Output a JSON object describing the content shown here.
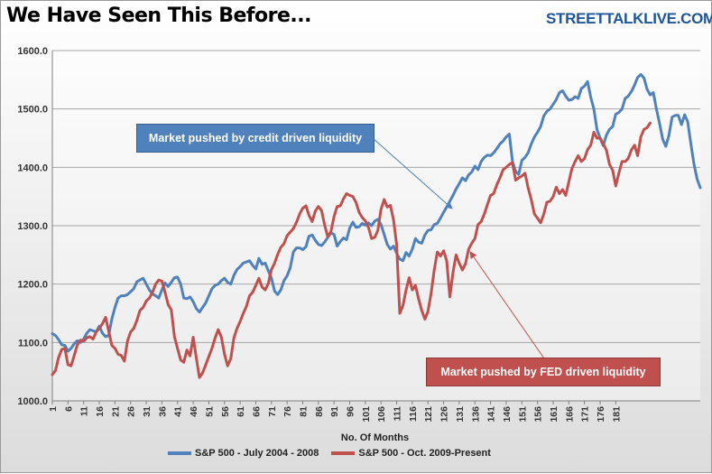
{
  "header": {
    "title": "We Have Seen This Before...",
    "brand": "STREETTALKLIVE.COM"
  },
  "annotations": {
    "credit": "Market pushed by credit driven liquidity",
    "fed": "Market pushed by FED driven liquidity"
  },
  "colors": {
    "blue": "#4f81bd",
    "red": "#c0504d",
    "blue_box": "#4f81bd",
    "red_box": "#c0504d"
  },
  "chart_data": {
    "type": "line",
    "title": "We Have Seen This Before...",
    "xlabel": "No. Of Months",
    "ylabel": "",
    "ylim": [
      1000,
      1600
    ],
    "yticks": [
      "1000.0",
      "1100.0",
      "1200.0",
      "1300.0",
      "1400.0",
      "1500.0",
      "1600.0"
    ],
    "xticks": [
      "1",
      "6",
      "11",
      "16",
      "21",
      "26",
      "31",
      "36",
      "41",
      "46",
      "51",
      "56",
      "61",
      "66",
      "71",
      "76",
      "81",
      "86",
      "91",
      "96",
      "101",
      "106",
      "111",
      "116",
      "121",
      "126",
      "131",
      "136",
      "141",
      "146",
      "151",
      "156",
      "161",
      "166",
      "171",
      "176",
      "181"
    ],
    "grid": true,
    "legend_position": "bottom",
    "series": [
      {
        "name": "S&P 500 - July 2004 - 2008",
        "color": "#4f81bd",
        "values": [
          1115,
          1112,
          1105,
          1096,
          1095,
          1085,
          1090,
          1098,
          1103,
          1100,
          1106,
          1116,
          1122,
          1120,
          1118,
          1128,
          1116,
          1110,
          1112,
          1140,
          1160,
          1176,
          1180,
          1180,
          1182,
          1187,
          1192,
          1204,
          1207,
          1210,
          1200,
          1190,
          1183,
          1180,
          1176,
          1190,
          1202,
          1196,
          1203,
          1211,
          1212,
          1200,
          1176,
          1175,
          1178,
          1170,
          1158,
          1152,
          1160,
          1168,
          1180,
          1192,
          1198,
          1200,
          1206,
          1210,
          1203,
          1200,
          1215,
          1225,
          1230,
          1236,
          1238,
          1240,
          1232,
          1226,
          1244,
          1234,
          1236,
          1223,
          1210,
          1188,
          1182,
          1190,
          1206,
          1214,
          1228,
          1255,
          1262,
          1262,
          1259,
          1264,
          1282,
          1284,
          1275,
          1268,
          1266,
          1272,
          1280,
          1288,
          1285,
          1265,
          1273,
          1279,
          1276,
          1296,
          1306,
          1297,
          1298,
          1304,
          1301,
          1305,
          1300,
          1308,
          1311,
          1302,
          1285,
          1268,
          1260,
          1265,
          1253,
          1243,
          1240,
          1254,
          1248,
          1260,
          1278,
          1272,
          1270,
          1284,
          1292,
          1293,
          1302,
          1304,
          1313,
          1323,
          1332,
          1342,
          1352,
          1363,
          1372,
          1382,
          1377,
          1387,
          1392,
          1402,
          1396,
          1410,
          1417,
          1421,
          1420,
          1425,
          1432,
          1440,
          1445,
          1452,
          1457,
          1410,
          1393,
          1388,
          1412,
          1417,
          1425,
          1440,
          1452,
          1460,
          1470,
          1488,
          1496,
          1500,
          1508,
          1516,
          1528,
          1531,
          1522,
          1515,
          1516,
          1521,
          1518,
          1535,
          1539,
          1547,
          1520,
          1500,
          1465,
          1450,
          1437,
          1455,
          1465,
          1470,
          1491,
          1494,
          1500,
          1518,
          1522,
          1530,
          1541,
          1554,
          1559,
          1553,
          1534,
          1524,
          1528,
          1500,
          1475,
          1448,
          1436,
          1455,
          1486,
          1489,
          1489,
          1473,
          1490,
          1478,
          1440,
          1405,
          1380,
          1365
        ]
      },
      {
        "name": "S&P 500 - Oct. 2009-Present",
        "color": "#c0504d",
        "values": [
          1045,
          1052,
          1074,
          1088,
          1090,
          1062,
          1060,
          1078,
          1096,
          1104,
          1102,
          1108,
          1110,
          1106,
          1118,
          1124,
          1132,
          1143,
          1120,
          1095,
          1090,
          1080,
          1078,
          1068,
          1102,
          1118,
          1124,
          1138,
          1155,
          1160,
          1171,
          1176,
          1186,
          1200,
          1207,
          1205,
          1186,
          1165,
          1156,
          1110,
          1090,
          1070,
          1066,
          1087,
          1077,
          1109,
          1073,
          1040,
          1048,
          1062,
          1076,
          1090,
          1108,
          1122,
          1109,
          1080,
          1060,
          1072,
          1108,
          1124,
          1136,
          1150,
          1162,
          1180,
          1186,
          1198,
          1210,
          1195,
          1190,
          1201,
          1225,
          1236,
          1251,
          1263,
          1269,
          1283,
          1289,
          1295,
          1306,
          1320,
          1330,
          1334,
          1318,
          1307,
          1325,
          1333,
          1326,
          1301,
          1281,
          1290,
          1316,
          1333,
          1334,
          1346,
          1355,
          1352,
          1350,
          1340,
          1323,
          1314,
          1308,
          1297,
          1278,
          1280,
          1292,
          1328,
          1345,
          1332,
          1335,
          1310,
          1268,
          1150,
          1163,
          1190,
          1211,
          1190,
          1198,
          1175,
          1155,
          1140,
          1153,
          1184,
          1224,
          1255,
          1248,
          1257,
          1240,
          1178,
          1220,
          1250,
          1236,
          1224,
          1235,
          1260,
          1270,
          1278,
          1302,
          1307,
          1320,
          1336,
          1352,
          1355,
          1370,
          1382,
          1396,
          1400,
          1405,
          1408,
          1378,
          1382,
          1385,
          1390,
          1365,
          1345,
          1320,
          1313,
          1305,
          1320,
          1340,
          1342,
          1350,
          1366,
          1355,
          1362,
          1352,
          1375,
          1398,
          1410,
          1420,
          1410,
          1415,
          1430,
          1438,
          1460,
          1450,
          1450,
          1440,
          1430,
          1405,
          1395,
          1368,
          1390,
          1410,
          1410,
          1415,
          1430,
          1438,
          1420,
          1452,
          1465,
          1468,
          1476
        ]
      }
    ]
  }
}
